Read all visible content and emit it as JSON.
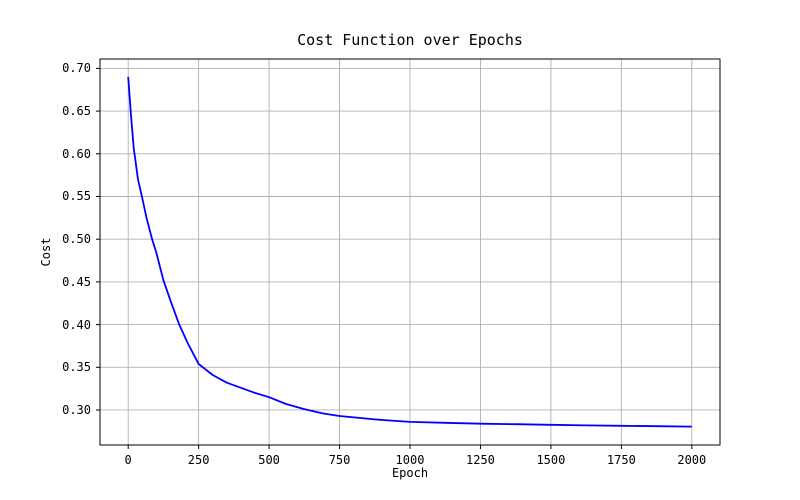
{
  "chart_data": {
    "type": "line",
    "title": "Cost Function over Epochs",
    "xlabel": "Epoch",
    "ylabel": "Cost",
    "grid": true,
    "grid_color": "#b0b0b0",
    "background_color": "#ffffff",
    "line_color": "#0000ff",
    "legend": "none",
    "xlim": [
      -100,
      2100
    ],
    "ylim": [
      0.259,
      0.711
    ],
    "x_ticks": [
      {
        "v": 0,
        "label": "0"
      },
      {
        "v": 250,
        "label": "250"
      },
      {
        "v": 500,
        "label": "500"
      },
      {
        "v": 750,
        "label": "750"
      },
      {
        "v": 1000,
        "label": "1000"
      },
      {
        "v": 1250,
        "label": "1250"
      },
      {
        "v": 1500,
        "label": "1500"
      },
      {
        "v": 1750,
        "label": "1750"
      },
      {
        "v": 2000,
        "label": "2000"
      }
    ],
    "y_ticks": [
      {
        "v": 0.3,
        "label": "0.30"
      },
      {
        "v": 0.35,
        "label": "0.35"
      },
      {
        "v": 0.4,
        "label": "0.40"
      },
      {
        "v": 0.45,
        "label": "0.45"
      },
      {
        "v": 0.5,
        "label": "0.50"
      },
      {
        "v": 0.55,
        "label": "0.55"
      },
      {
        "v": 0.6,
        "label": "0.60"
      },
      {
        "v": 0.65,
        "label": "0.65"
      },
      {
        "v": 0.7,
        "label": "0.70"
      }
    ],
    "series": [
      {
        "name": "cost",
        "color": "#0000ff",
        "x": [
          0,
          10,
          20,
          35,
          50,
          65,
          85,
          100,
          125,
          150,
          180,
          210,
          250,
          300,
          350,
          400,
          450,
          500,
          560,
          625,
          690,
          750,
          875,
          1000,
          1125,
          1250,
          1375,
          1500,
          1625,
          1750,
          1875,
          2000
        ],
        "y": [
          0.69,
          0.645,
          0.606,
          0.57,
          0.548,
          0.525,
          0.5,
          0.484,
          0.452,
          0.428,
          0.401,
          0.379,
          0.354,
          0.341,
          0.332,
          0.326,
          0.32,
          0.315,
          0.307,
          0.301,
          0.296,
          0.293,
          0.289,
          0.286,
          0.285,
          0.284,
          0.2833,
          0.2826,
          0.282,
          0.2815,
          0.281,
          0.2806
        ]
      }
    ]
  }
}
